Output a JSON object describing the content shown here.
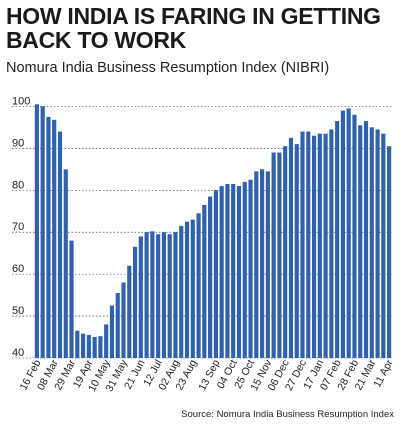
{
  "chart_data": {
    "type": "bar",
    "title": "HOW INDIA IS FARING IN GETTING BACK TO WORK",
    "subtitle": "Nomura India Business Resumption Index (NIBRI)",
    "source": "Source: Nomura India Business Resumption Index",
    "ylim": [
      40,
      102
    ],
    "yticks": [
      40,
      50,
      60,
      70,
      80,
      90,
      100
    ],
    "xlabels": [
      "16 Feb",
      "08 Mar",
      "29 Mar",
      "19 Apr",
      "10 May",
      "31 May",
      "21 Jun",
      "12 Jul",
      "02 Aug",
      "23 Aug",
      "13 Sep",
      "04 Oct",
      "25 Oct",
      "15 Nov",
      "06 Dec",
      "27 Dec",
      "17 Jan",
      "07 Feb",
      "28 Feb",
      "21 Mar",
      "11 Apr"
    ],
    "values": [
      100.5,
      100,
      97.5,
      96.8,
      94,
      85,
      68,
      46.5,
      45.8,
      45.5,
      45,
      45.2,
      48,
      52.5,
      55.5,
      58,
      62,
      66.5,
      69,
      70,
      70.2,
      69.5,
      70,
      69.5,
      70,
      71.5,
      72.5,
      73,
      74.5,
      76.5,
      78.5,
      80,
      81,
      81.5,
      81.5,
      81,
      82,
      82.5,
      84.5,
      85,
      84.5,
      89,
      89,
      90.5,
      92.5,
      91,
      94,
      94,
      93,
      93.5,
      93.5,
      94.5,
      96.5,
      99,
      99.5,
      98,
      95.5,
      96.5,
      95,
      94.5,
      93.5,
      90.5
    ],
    "bar_color": "#2f62ad",
    "grid": true,
    "gridline_color": "#222222"
  }
}
